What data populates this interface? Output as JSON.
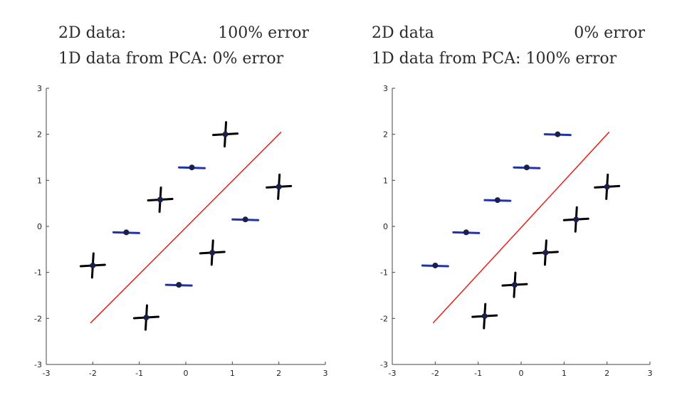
{
  "charts": [
    {
      "title_line1_label": "2D data:",
      "title_line1_value": "100% error",
      "title_line2_label": "1D data from PCA: 0% error",
      "title_line2_value": ""
    },
    {
      "title_line1_label": "2D data",
      "title_line1_value": "0% error",
      "title_line2_label": "1D data from PCA: 100% error",
      "title_line2_value": ""
    }
  ],
  "chart_data": [
    {
      "type": "scatter",
      "title": "2D data: 100% error / 1D data from PCA: 0% error",
      "xlim": [
        -3,
        3
      ],
      "ylim": [
        -3,
        3
      ],
      "xticks": [
        "-3",
        "-2",
        "-1",
        "0",
        "1",
        "2",
        "3"
      ],
      "yticks": [
        "-3",
        "-2",
        "-1",
        "0",
        "1",
        "2",
        "3"
      ],
      "grid": false,
      "series": [
        {
          "marker": "plus",
          "color": "#000000",
          "points": [
            [
              -2.0,
              -0.85
            ],
            [
              -0.85,
              -1.98
            ],
            [
              -0.55,
              0.58
            ],
            [
              0.57,
              -0.57
            ],
            [
              0.85,
              2.0
            ],
            [
              2.0,
              0.86
            ]
          ]
        },
        {
          "marker": "dash",
          "color": "#2233aa",
          "points": [
            [
              -1.28,
              -0.13
            ],
            [
              -0.15,
              -1.27
            ],
            [
              0.13,
              1.28
            ],
            [
              1.28,
              0.15
            ]
          ]
        },
        {
          "marker": "line",
          "color": "#e8201a",
          "points": [
            [
              -2.05,
              -2.1
            ],
            [
              2.05,
              2.05
            ]
          ]
        }
      ]
    },
    {
      "type": "scatter",
      "title": "2D data 0% error / 1D data from PCA: 100% error",
      "xlim": [
        -3,
        3
      ],
      "ylim": [
        -3,
        3
      ],
      "xticks": [
        "-3",
        "-2",
        "-1",
        "0",
        "1",
        "2",
        "3"
      ],
      "yticks": [
        "-3",
        "-2",
        "-1",
        "0",
        "1",
        "2",
        "3"
      ],
      "grid": false,
      "series": [
        {
          "marker": "plus",
          "color": "#000000",
          "points": [
            [
              -0.85,
              -1.95
            ],
            [
              -0.15,
              -1.27
            ],
            [
              0.57,
              -0.57
            ],
            [
              1.28,
              0.15
            ],
            [
              2.0,
              0.86
            ]
          ]
        },
        {
          "marker": "dash",
          "color": "#2233aa",
          "points": [
            [
              -2.0,
              -0.85
            ],
            [
              -1.28,
              -0.13
            ],
            [
              -0.55,
              0.57
            ],
            [
              0.13,
              1.28
            ],
            [
              0.85,
              2.0
            ]
          ]
        },
        {
          "marker": "line",
          "color": "#e8201a",
          "points": [
            [
              -2.05,
              -2.1
            ],
            [
              2.05,
              2.05
            ]
          ]
        }
      ]
    }
  ]
}
